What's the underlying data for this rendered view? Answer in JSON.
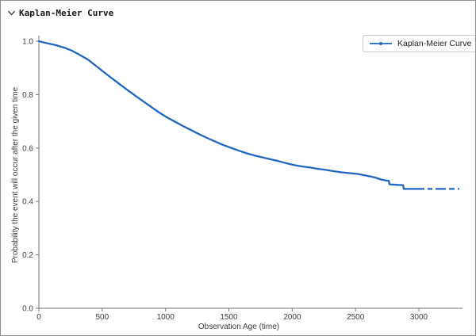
{
  "header": {
    "title": "Kaplan-Meier Curve",
    "collapse_icon": "chevron-down-icon"
  },
  "legend": {
    "label": "Kaplan-Meier Curve"
  },
  "colors": {
    "line": "#2166c4",
    "spine": "#757575",
    "text": "#3d3d3d",
    "legend_border": "#cbcbcb",
    "frame_border": "#8f8f8f"
  },
  "chart_data": {
    "type": "line",
    "title": "Kaplan-Meier Curve",
    "xlabel": "Observation Age (time)",
    "ylabel": "Probability the event will occur after the given time",
    "xlim": [
      0,
      3344
    ],
    "ylim": [
      0.0,
      1.0
    ],
    "x_ticks": [
      0,
      500,
      1000,
      1500,
      2000,
      2500,
      3000
    ],
    "y_ticks": [
      0.0,
      0.2,
      0.4,
      0.6,
      0.8,
      1.0
    ],
    "grid": false,
    "legend_position": "top-right",
    "series": [
      {
        "name": "Kaplan-Meier Curve",
        "color": "#2166c4",
        "censored_tail_start": 2881,
        "points": [
          [
            0,
            1.0
          ],
          [
            60,
            0.993
          ],
          [
            138,
            0.985
          ],
          [
            200,
            0.976
          ],
          [
            263,
            0.964
          ],
          [
            325,
            0.948
          ],
          [
            388,
            0.931
          ],
          [
            450,
            0.908
          ],
          [
            514,
            0.884
          ],
          [
            576,
            0.861
          ],
          [
            639,
            0.839
          ],
          [
            700,
            0.817
          ],
          [
            764,
            0.795
          ],
          [
            827,
            0.774
          ],
          [
            889,
            0.753
          ],
          [
            950,
            0.733
          ],
          [
            1014,
            0.714
          ],
          [
            1077,
            0.698
          ],
          [
            1140,
            0.682
          ],
          [
            1202,
            0.667
          ],
          [
            1265,
            0.652
          ],
          [
            1327,
            0.638
          ],
          [
            1390,
            0.625
          ],
          [
            1453,
            0.612
          ],
          [
            1516,
            0.601
          ],
          [
            1580,
            0.59
          ],
          [
            1641,
            0.58
          ],
          [
            1703,
            0.572
          ],
          [
            1766,
            0.565
          ],
          [
            1829,
            0.558
          ],
          [
            1891,
            0.551
          ],
          [
            1954,
            0.543
          ],
          [
            2017,
            0.536
          ],
          [
            2080,
            0.531
          ],
          [
            2142,
            0.527
          ],
          [
            2205,
            0.522
          ],
          [
            2267,
            0.518
          ],
          [
            2330,
            0.513
          ],
          [
            2392,
            0.509
          ],
          [
            2455,
            0.506
          ],
          [
            2517,
            0.503
          ],
          [
            2580,
            0.497
          ],
          [
            2643,
            0.491
          ],
          [
            2705,
            0.482
          ],
          [
            2745,
            0.478
          ],
          [
            2763,
            0.477
          ],
          [
            2768,
            0.464
          ],
          [
            2831,
            0.462
          ],
          [
            2876,
            0.461
          ],
          [
            2881,
            0.447
          ],
          [
            3319,
            0.447
          ]
        ]
      }
    ]
  }
}
